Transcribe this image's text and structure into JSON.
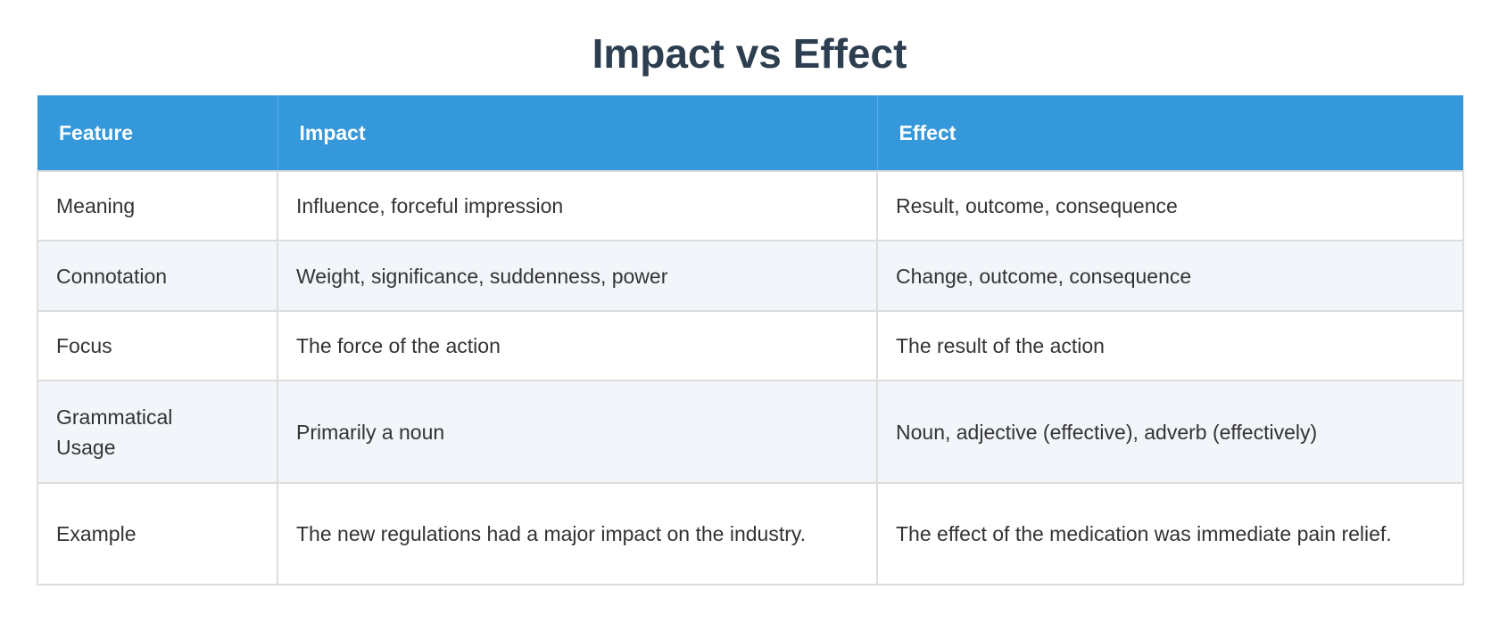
{
  "title": "Impact vs Effect",
  "colors": {
    "header_bg": "#3498db",
    "title": "#2c3e50",
    "alt_row": "#f2f5f9"
  },
  "table": {
    "headers": [
      "Feature",
      "Impact",
      "Effect"
    ],
    "rows": [
      [
        "Meaning",
        "Influence, forceful impression",
        "Result, outcome, consequence"
      ],
      [
        "Connotation",
        "Weight, significance, suddenness, power",
        "Change, outcome, consequence"
      ],
      [
        "Focus",
        "The force of the action",
        "The result of the action"
      ],
      [
        "Grammatical Usage",
        "Primarily a noun",
        "Noun, adjective (effective), adverb (effectively)"
      ],
      [
        "Example",
        "The new regulations had a major impact on the industry.",
        "The effect of the medication was immediate pain relief."
      ]
    ]
  }
}
